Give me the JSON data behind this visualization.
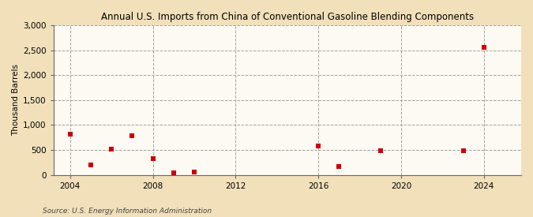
{
  "title": "Annual U.S. Imports from China of Conventional Gasoline Blending Components",
  "ylabel": "Thousand Barrels",
  "source": "Source: U.S. Energy Information Administration",
  "background_color": "#f2e0bb",
  "plot_background_color": "#fdfaf3",
  "marker_color": "#cc0000",
  "marker_size": 4,
  "xlim": [
    2003.2,
    2025.8
  ],
  "ylim": [
    0,
    3000
  ],
  "yticks": [
    0,
    500,
    1000,
    1500,
    2000,
    2500,
    3000
  ],
  "ytick_labels": [
    "0",
    "500",
    "1,000",
    "1,500",
    "2,000",
    "2,500",
    "3,000"
  ],
  "xticks": [
    2004,
    2008,
    2012,
    2016,
    2020,
    2024
  ],
  "data_x": [
    2004,
    2005,
    2006,
    2007,
    2008,
    2009,
    2010,
    2016,
    2017,
    2019,
    2023,
    2024
  ],
  "data_y": [
    820,
    200,
    520,
    790,
    325,
    50,
    60,
    575,
    175,
    480,
    480,
    2560
  ]
}
